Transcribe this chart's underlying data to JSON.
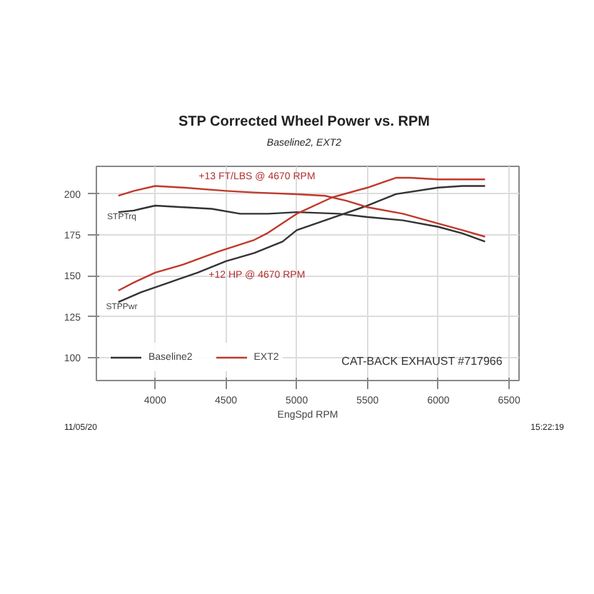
{
  "chart_data": {
    "type": "line",
    "title": "STP Corrected Wheel Power vs. RPM",
    "subtitle": "Baseline2, EXT2",
    "xlabel": "EngSpd RPM",
    "xlim": [
      3585,
      6570
    ],
    "ylim": [
      86,
      217
    ],
    "xticks": [
      4000,
      4500,
      5000,
      5500,
      6000,
      6500
    ],
    "yticks": [
      100,
      125,
      150,
      175,
      200
    ],
    "grid": true,
    "legend": "bottom left",
    "line_style": "solid",
    "marker": "none",
    "series": [
      {
        "name": "Baseline2",
        "color": "#333333",
        "x": [
          3740,
          3850,
          3900,
          4000,
          4200,
          4400,
          4600,
          4800,
          5000,
          5300,
          5500,
          5750,
          6000,
          6170,
          6330
        ],
        "values": [
          189,
          190,
          191,
          193,
          192,
          191,
          188,
          188,
          189,
          188,
          186,
          184,
          180,
          176,
          171
        ]
      },
      {
        "color": "#333333",
        "x": [
          3740,
          3900,
          4100,
          4300,
          4500,
          4700,
          4900,
          5000,
          5200,
          5500,
          5700,
          6000,
          6170,
          6330
        ],
        "values": [
          134,
          140,
          146,
          152,
          159,
          164,
          171,
          178,
          184,
          193,
          200,
          204,
          205,
          205
        ]
      },
      {
        "name": "EXT2",
        "color": "#c0392b",
        "x": [
          3740,
          3850,
          4000,
          4200,
          4500,
          4700,
          5000,
          5200,
          5350,
          5500,
          5750,
          6000,
          6170,
          6330
        ],
        "values": [
          199,
          202,
          205,
          204,
          202,
          201,
          200,
          199,
          196,
          192,
          188,
          182,
          178,
          174
        ]
      },
      {
        "color": "#c0392b",
        "x": [
          3740,
          3850,
          4000,
          4200,
          4450,
          4700,
          4790,
          5000,
          5250,
          5500,
          5700,
          5800,
          6000,
          6170,
          6330
        ],
        "values": [
          141,
          146,
          152,
          157,
          165,
          172,
          176,
          188,
          198,
          204,
          210,
          210,
          209,
          209,
          209
        ]
      }
    ],
    "annotations": [
      "11/05/20",
      "+13 FT/LBS @ 4670 RPM",
      "+12 HP @ 4670 RPM",
      "STPTrq",
      "STPPwr",
      "CAT-BACK EXHAUST #717966",
      "15:22:19"
    ]
  }
}
